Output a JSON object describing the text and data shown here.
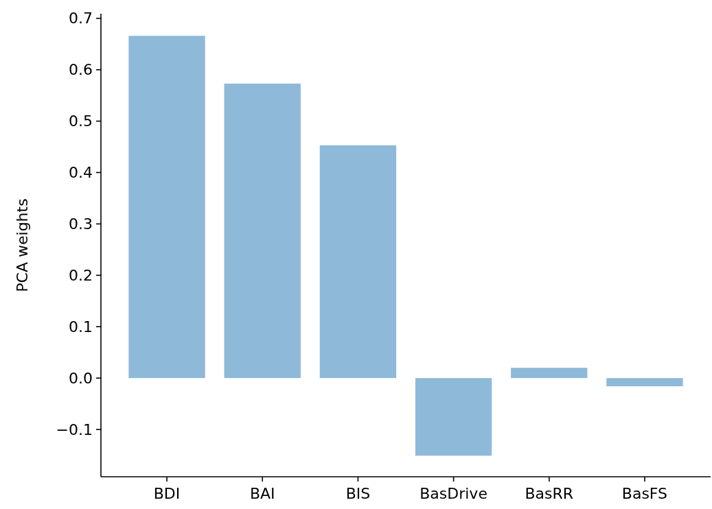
{
  "chart_data": {
    "type": "bar",
    "ylabel": "PCA weights",
    "categories": [
      "BDI",
      "BAI",
      "BIS",
      "BasDrive",
      "BasRR",
      "BasFS"
    ],
    "values": [
      0.666,
      0.573,
      0.453,
      -0.151,
      0.02,
      -0.016
    ],
    "color": "#8fb9d9",
    "ylim": [
      -0.192,
      0.709
    ],
    "yticks": [
      {
        "value": -0.1,
        "label": "−0.1"
      },
      {
        "value": 0.0,
        "label": "0.0"
      },
      {
        "value": 0.1,
        "label": "0.1"
      },
      {
        "value": 0.2,
        "label": "0.2"
      },
      {
        "value": 0.3,
        "label": "0.3"
      },
      {
        "value": 0.4,
        "label": "0.4"
      },
      {
        "value": 0.5,
        "label": "0.5"
      },
      {
        "value": 0.6,
        "label": "0.6"
      },
      {
        "value": 0.7,
        "label": "0.7"
      }
    ],
    "grid": false
  }
}
